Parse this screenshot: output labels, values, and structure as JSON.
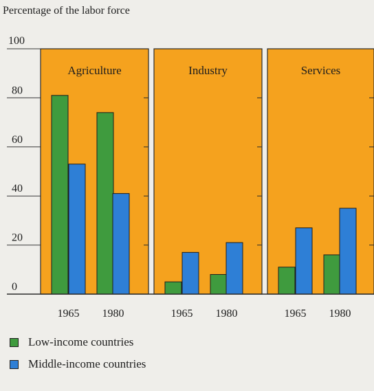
{
  "chart_data": {
    "type": "bar",
    "title": "Percentage of the labor force",
    "ylim": [
      0,
      100
    ],
    "yticks": [
      0,
      20,
      40,
      60,
      80,
      100
    ],
    "categories": [
      "1965",
      "1980"
    ],
    "panels": [
      {
        "name": "Agriculture",
        "series": [
          {
            "name": "Low-income countries",
            "values": [
              81,
              74
            ]
          },
          {
            "name": "Middle-income countries",
            "values": [
              53,
              41
            ]
          }
        ]
      },
      {
        "name": "Industry",
        "series": [
          {
            "name": "Low-income countries",
            "values": [
              5,
              8
            ]
          },
          {
            "name": "Middle-income countries",
            "values": [
              17,
              21
            ]
          }
        ]
      },
      {
        "name": "Services",
        "series": [
          {
            "name": "Low-income countries",
            "values": [
              11,
              16
            ]
          },
          {
            "name": "Middle-income countries",
            "values": [
              27,
              35
            ]
          }
        ]
      }
    ],
    "colors": {
      "panel_background": "#f5a21e",
      "low_income": "#3f9b3e",
      "middle_income": "#2e7fd6",
      "page_background": "#efeeea"
    },
    "legend_position": "bottom-left",
    "grid": false
  }
}
